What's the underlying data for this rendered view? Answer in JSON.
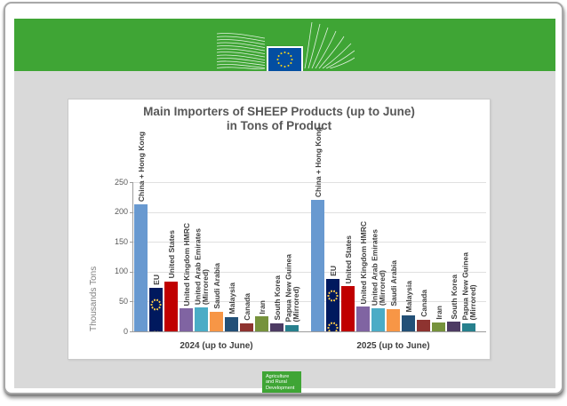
{
  "header": {
    "logo": {
      "line1": "European",
      "line2": "Commission"
    },
    "brand_colors": {
      "banner_green": "#3fa535",
      "eu_flag_blue": "#034ea2",
      "star_yellow": "#ffd617"
    }
  },
  "footer_badge": {
    "line1": "Agriculture",
    "line2": "and Rural",
    "line3": "Development"
  },
  "chart_data": {
    "type": "bar",
    "title": "Main Importers of SHEEP Products (up to June) in Tons of Product",
    "title_line1": "Main Importers of SHEEP Products (up to June)",
    "title_line2": "in Tons of Product",
    "ylabel": "Thousands Tons",
    "ylim": [
      0,
      250
    ],
    "yticks": [
      0,
      50,
      100,
      150,
      200,
      250
    ],
    "grid": true,
    "legend_position": "none (category names printed vertically above bars)",
    "categories": [
      "2024 (up to June)",
      "2025 (up to June)"
    ],
    "series": [
      {
        "name": "China + Hong Kong",
        "values": [
          213,
          220
        ],
        "color": "#6899d0"
      },
      {
        "name": "EU",
        "values": [
          73,
          88
        ],
        "color": "#00195e",
        "pattern": "eu-flag-stars"
      },
      {
        "name": "United States",
        "values": [
          84,
          76
        ],
        "color": "#c00000"
      },
      {
        "name": "United Kingdom HMRC",
        "values": [
          38,
          41
        ],
        "color": "#8064a2"
      },
      {
        "name": "United Arab Emirates\n(Mirrored)",
        "values": [
          40,
          39
        ],
        "color": "#4bacc6"
      },
      {
        "name": "Saudi Arabia",
        "values": [
          33,
          37
        ],
        "color": "#f79646"
      },
      {
        "name": "Malaysia",
        "values": [
          24,
          27
        ],
        "color": "#235077"
      },
      {
        "name": "Canada",
        "values": [
          14,
          20
        ],
        "color": "#8e3330"
      },
      {
        "name": "Iran",
        "values": [
          25,
          15
        ],
        "color": "#76923c"
      },
      {
        "name": "South Korea",
        "values": [
          14,
          16
        ],
        "color": "#4d3b63"
      },
      {
        "name": "Papua New Guinea\n(Mirrored)",
        "values": [
          11,
          14
        ],
        "color": "#27808d"
      }
    ]
  }
}
